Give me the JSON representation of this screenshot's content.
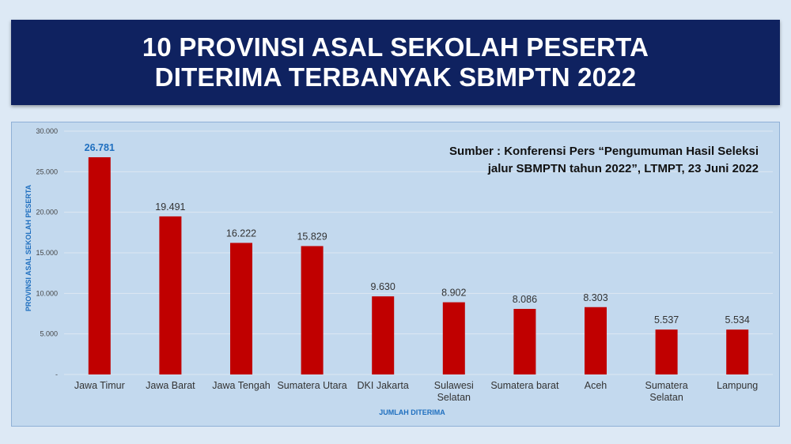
{
  "header": {
    "title_line1": "10 PROVINSI ASAL SEKOLAH PESERTA",
    "title_line2": "DITERIMA TERBANYAK SBMPTN 2022"
  },
  "source": {
    "line1": "Sumber : Konferensi Pers “Pengumuman Hasil Seleksi",
    "line2": "jalur SBMPTN tahun 2022”, LTMPT, 23 Juni 2022"
  },
  "colors": {
    "bar": "#c00000",
    "axis_label": "#1f6fbf",
    "highlight_label": "#1f6fbf",
    "banner": "#0f2260",
    "plot_bg": "#c3d9ee"
  },
  "chart_data": {
    "type": "bar",
    "categories": [
      [
        "Jawa Timur"
      ],
      [
        "Jawa Barat"
      ],
      [
        "Jawa Tengah"
      ],
      [
        "Sumatera Utara"
      ],
      [
        "DKI Jakarta"
      ],
      [
        "Sulawesi",
        "Selatan"
      ],
      [
        "Sumatera barat"
      ],
      [
        "Aceh"
      ],
      [
        "Sumatera",
        "Selatan"
      ],
      [
        "Lampung"
      ]
    ],
    "values": [
      26781,
      19491,
      16222,
      15829,
      9630,
      8902,
      8086,
      8303,
      5537,
      5534
    ],
    "value_labels": [
      "26.781",
      "19.491",
      "16.222",
      "15.829",
      "9.630",
      "8.902",
      "8.086",
      "8.303",
      "5.537",
      "5.534"
    ],
    "highlight_index": 0,
    "ylim": [
      0,
      30000
    ],
    "yticks": [
      0,
      5000,
      10000,
      15000,
      20000,
      25000,
      30000
    ],
    "ytick_labels": [
      "-",
      "5.000",
      "10.000",
      "15.000",
      "20.000",
      "25.000",
      "30.000"
    ],
    "xlabel": "JUMLAH DITERIMA",
    "ylabel": "PROVINSI ASAL SEKOLAH PESERTA",
    "grid": true,
    "legend": "none"
  }
}
